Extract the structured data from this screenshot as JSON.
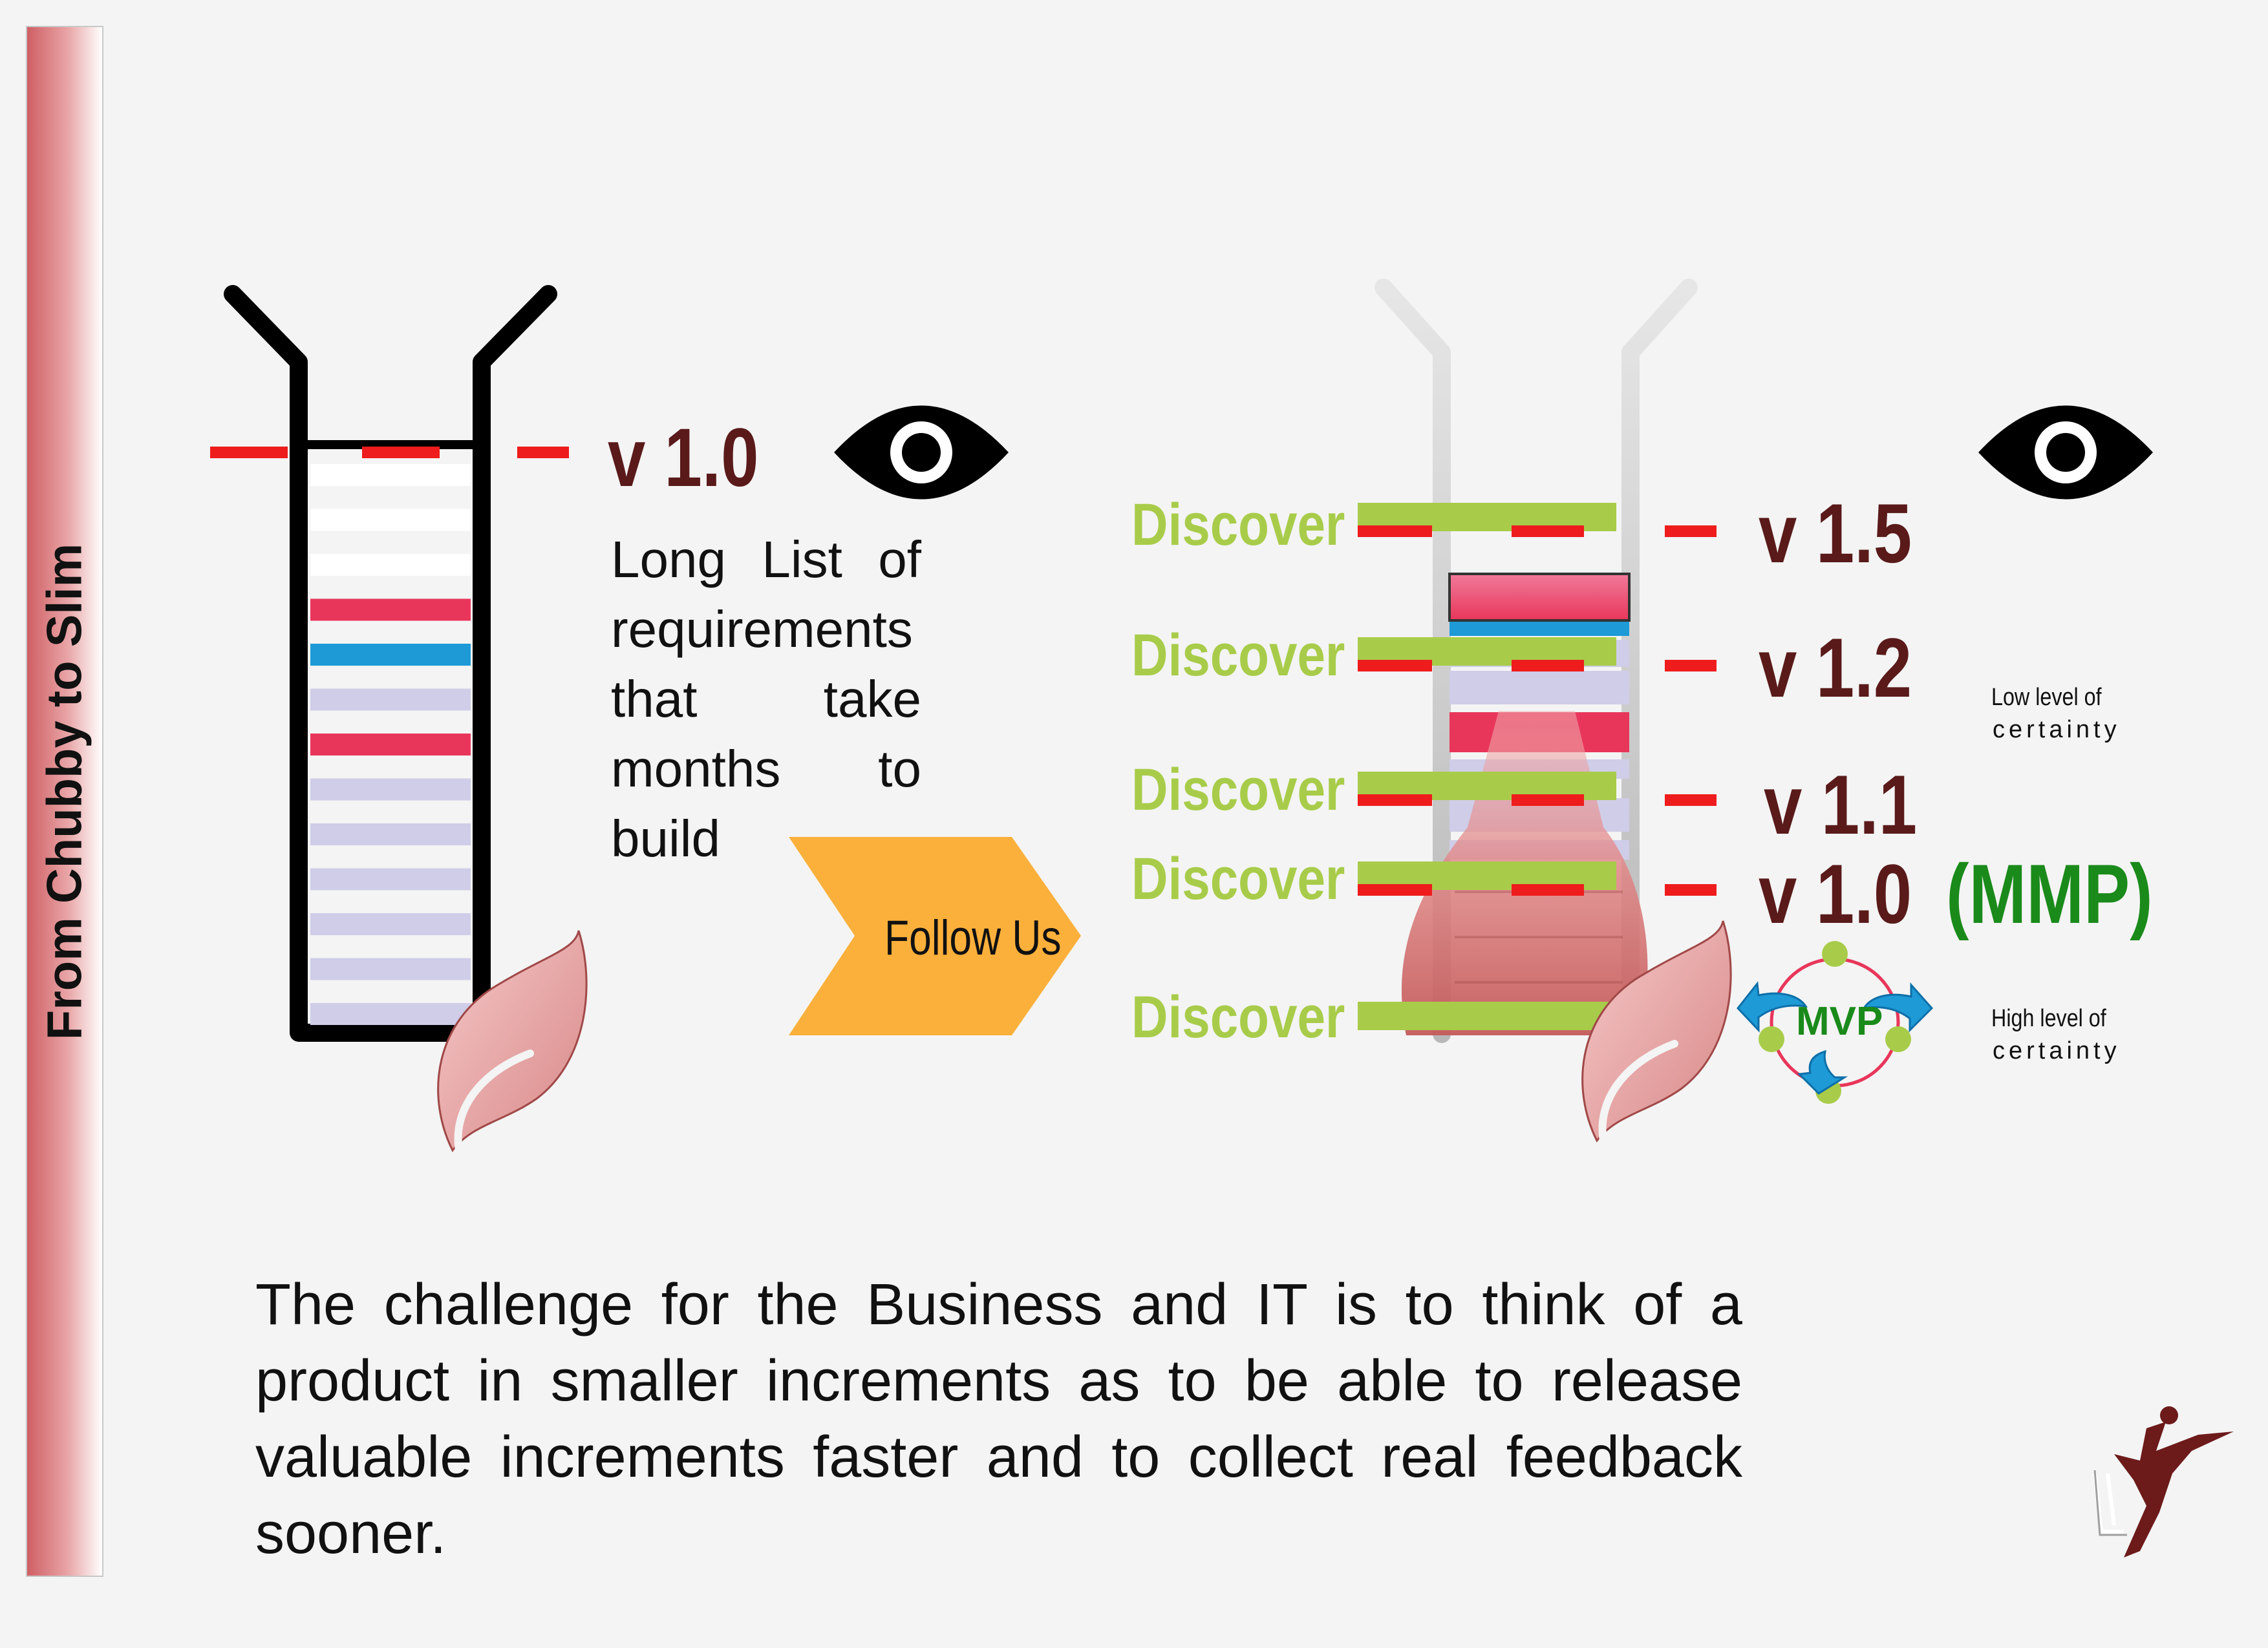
{
  "sidebar": {
    "title": "From Chubby to Slim"
  },
  "left_panel": {
    "version_label": "v 1.0",
    "description": "Long List of requirements that take months to build"
  },
  "follow_button": {
    "label": "Follow Us"
  },
  "right_panel": {
    "discover_labels": [
      "Discover",
      "Discover",
      "Discover",
      "Discover",
      "Discover"
    ],
    "versions": [
      "v 1.5",
      "v 1.2",
      "v 1.1",
      "v 1.0"
    ],
    "mmp_label": "(MMP)",
    "mvp_label": "MVP",
    "certainty_low": [
      "Low level of",
      "certainty"
    ],
    "certainty_high": [
      "High level of",
      "certainty"
    ]
  },
  "footer": {
    "challenge_text": "The challenge for the Business and IT is to think of a product in smaller increments as to be able to release valuable increments faster and to collect real feedback sooner."
  },
  "colors": {
    "red_marker": "#ee1c1c",
    "green_bar": "#a8cc4a",
    "version_text": "#5a1a1a",
    "mmp_text": "#1a8a1a",
    "arrow_orange": "#fbb03b",
    "rung_red": "#e8365a",
    "rung_blue": "#1e9ad6",
    "rung_lavender": "#cfcde8"
  }
}
